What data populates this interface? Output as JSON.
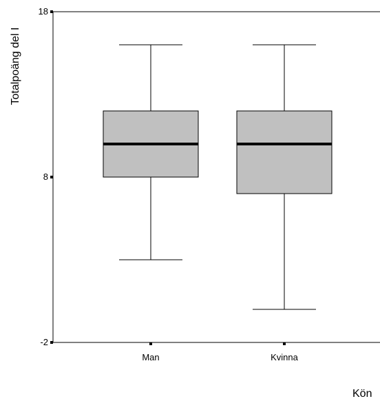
{
  "chart_data": {
    "type": "box",
    "xlabel": "Kön",
    "ylabel": "Totalpoäng del I",
    "ylim": [
      -2,
      18
    ],
    "yticks": [
      {
        "value": 18,
        "label": "18"
      },
      {
        "value": 8,
        "label": "8"
      },
      {
        "value": -2,
        "label": "-2"
      }
    ],
    "categories": [
      "Man",
      "Kvinna"
    ],
    "boxes": [
      {
        "category": "Man",
        "min": 3,
        "q1": 8,
        "median": 10,
        "q3": 12,
        "max": 16
      },
      {
        "category": "Kvinna",
        "min": 0,
        "q1": 7,
        "median": 10,
        "q3": 12,
        "max": 16
      }
    ],
    "grid": false,
    "box_fill": "#c0c0c0",
    "line_color": "#000000"
  }
}
